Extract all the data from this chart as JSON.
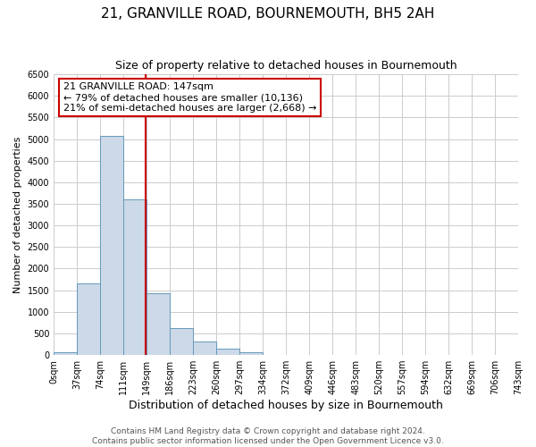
{
  "title": "21, GRANVILLE ROAD, BOURNEMOUTH, BH5 2AH",
  "subtitle": "Size of property relative to detached houses in Bournemouth",
  "xlabel": "Distribution of detached houses by size in Bournemouth",
  "ylabel": "Number of detached properties",
  "bin_edges": [
    0,
    37,
    74,
    111,
    149,
    186,
    223,
    260,
    297,
    334,
    372,
    409,
    446,
    483,
    520,
    557,
    594,
    632,
    669,
    706,
    743
  ],
  "bin_labels": [
    "0sqm",
    "37sqm",
    "74sqm",
    "111sqm",
    "149sqm",
    "186sqm",
    "223sqm",
    "260sqm",
    "297sqm",
    "334sqm",
    "372sqm",
    "409sqm",
    "446sqm",
    "483sqm",
    "520sqm",
    "557sqm",
    "594sqm",
    "632sqm",
    "669sqm",
    "706sqm",
    "743sqm"
  ],
  "counts": [
    60,
    1650,
    5080,
    3600,
    1430,
    620,
    310,
    155,
    65,
    10,
    10,
    0,
    0,
    0,
    0,
    0,
    0,
    0,
    0,
    0
  ],
  "bar_facecolor": "#ccd9e8",
  "bar_edgecolor": "#6699bb",
  "grid_color": "#cccccc",
  "vline_x": 147,
  "vline_color": "#cc0000",
  "annotation_line1": "21 GRANVILLE ROAD: 147sqm",
  "annotation_line2": "← 79% of detached houses are smaller (10,136)",
  "annotation_line3": "21% of semi-detached houses are larger (2,668) →",
  "annotation_box_facecolor": "white",
  "annotation_box_edgecolor": "#cc0000",
  "ylim": [
    0,
    6500
  ],
  "yticks": [
    0,
    500,
    1000,
    1500,
    2000,
    2500,
    3000,
    3500,
    4000,
    4500,
    5000,
    5500,
    6000,
    6500
  ],
  "footer_line1": "Contains HM Land Registry data © Crown copyright and database right 2024.",
  "footer_line2": "Contains public sector information licensed under the Open Government Licence v3.0.",
  "title_fontsize": 11,
  "subtitle_fontsize": 9,
  "xlabel_fontsize": 9,
  "ylabel_fontsize": 8,
  "tick_fontsize": 7,
  "footer_fontsize": 6.5,
  "annotation_fontsize": 8
}
